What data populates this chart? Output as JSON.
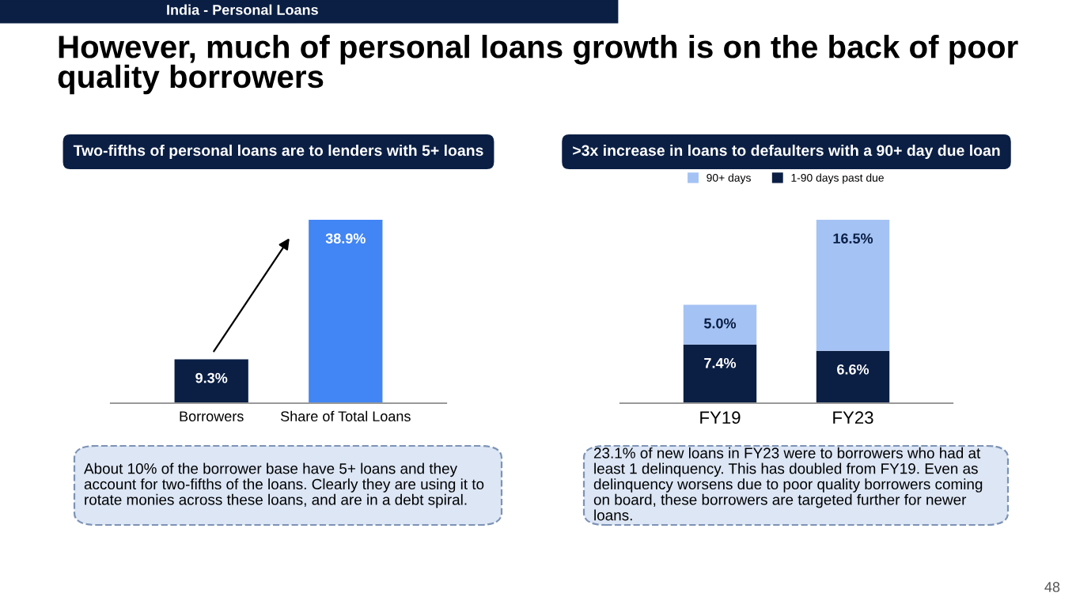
{
  "chart_data": [
    {
      "type": "other",
      "title": "However, much of personal loans growth is on the back of poor quality borrowers",
      "subtitle": "India - Personal Loans",
      "annotations": [
        "48"
      ]
    },
    {
      "type": "bar",
      "title": "Two-fifths of personal loans are to lenders with 5+ loans",
      "categories": [
        "Borrowers",
        "Share of Total Loans"
      ],
      "values": [
        9.3,
        38.9
      ],
      "colors": [
        "#0b1f44",
        "#4285f4"
      ],
      "value_labels": [
        "9.3%",
        "38.9%"
      ],
      "tick_labels": "x",
      "grid": false,
      "legend": false,
      "annotations": [
        "About 10% of the borrower base have 5+ loans and they account for two-fifths of the loans. Clearly they are using it to rotate monies across these loans, and are in a debt spiral."
      ]
    },
    {
      "type": "bar",
      "stacked": true,
      "title": ">3x increase in loans to defaulters with a 90+ day due loan",
      "categories": [
        "FY19",
        "FY23"
      ],
      "series": [
        {
          "name": "1-90 days past due",
          "color": "#0b1f44",
          "values": [
            7.4,
            6.6
          ],
          "value_labels": [
            "7.4%",
            "6.6%"
          ]
        },
        {
          "name": "90+ days",
          "color": "#a4c2f4",
          "values": [
            5.0,
            16.5
          ],
          "value_labels": [
            "5.0%",
            "16.5%"
          ]
        }
      ],
      "tick_labels": "x",
      "grid": false,
      "legend": "top",
      "annotations": [
        "23.1% of new loans in FY23 were to borrowers who had at least 1 delinquency. This has doubled from FY19. Even as delinquency worsens due to poor quality borrowers coming on board, these borrowers are targeted further for newer loans."
      ]
    }
  ]
}
